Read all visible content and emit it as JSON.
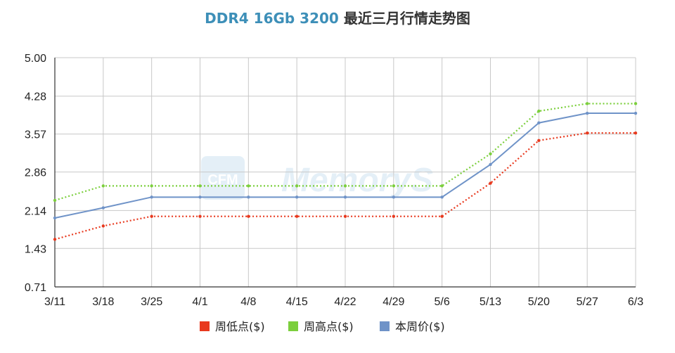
{
  "title": {
    "model": "DDR4 16Gb 3200",
    "subtitle": "最近三月行情走势图",
    "model_color": "#3d8fb8"
  },
  "watermark": {
    "logo_text": "CFM",
    "text": "MemoryS"
  },
  "chart_data": {
    "type": "line",
    "categories": [
      "3/11",
      "3/18",
      "3/25",
      "4/1",
      "4/8",
      "4/15",
      "4/22",
      "4/29",
      "5/6",
      "5/13",
      "5/20",
      "5/27",
      "6/3"
    ],
    "ylim": [
      0.71,
      5.0
    ],
    "yticks": [
      "5.00",
      "4.28",
      "3.57",
      "2.86",
      "2.14",
      "1.43",
      "0.71"
    ],
    "grid": true,
    "legend_position": "bottom",
    "series": [
      {
        "name": "周低点($)",
        "color": "#e8391e",
        "style": "dotted",
        "values": [
          1.6,
          1.85,
          2.03,
          2.03,
          2.03,
          2.03,
          2.03,
          2.03,
          2.03,
          2.65,
          3.45,
          3.59,
          3.59
        ]
      },
      {
        "name": "周高点($)",
        "color": "#7ccf3d",
        "style": "dotted",
        "values": [
          2.33,
          2.6,
          2.6,
          2.6,
          2.6,
          2.6,
          2.6,
          2.6,
          2.6,
          3.2,
          4.0,
          4.14,
          4.14
        ]
      },
      {
        "name": "本周价($)",
        "color": "#6f93c8",
        "style": "solid",
        "values": [
          2.0,
          2.19,
          2.39,
          2.39,
          2.39,
          2.39,
          2.39,
          2.39,
          2.39,
          3.0,
          3.78,
          3.96,
          3.96
        ]
      }
    ]
  }
}
